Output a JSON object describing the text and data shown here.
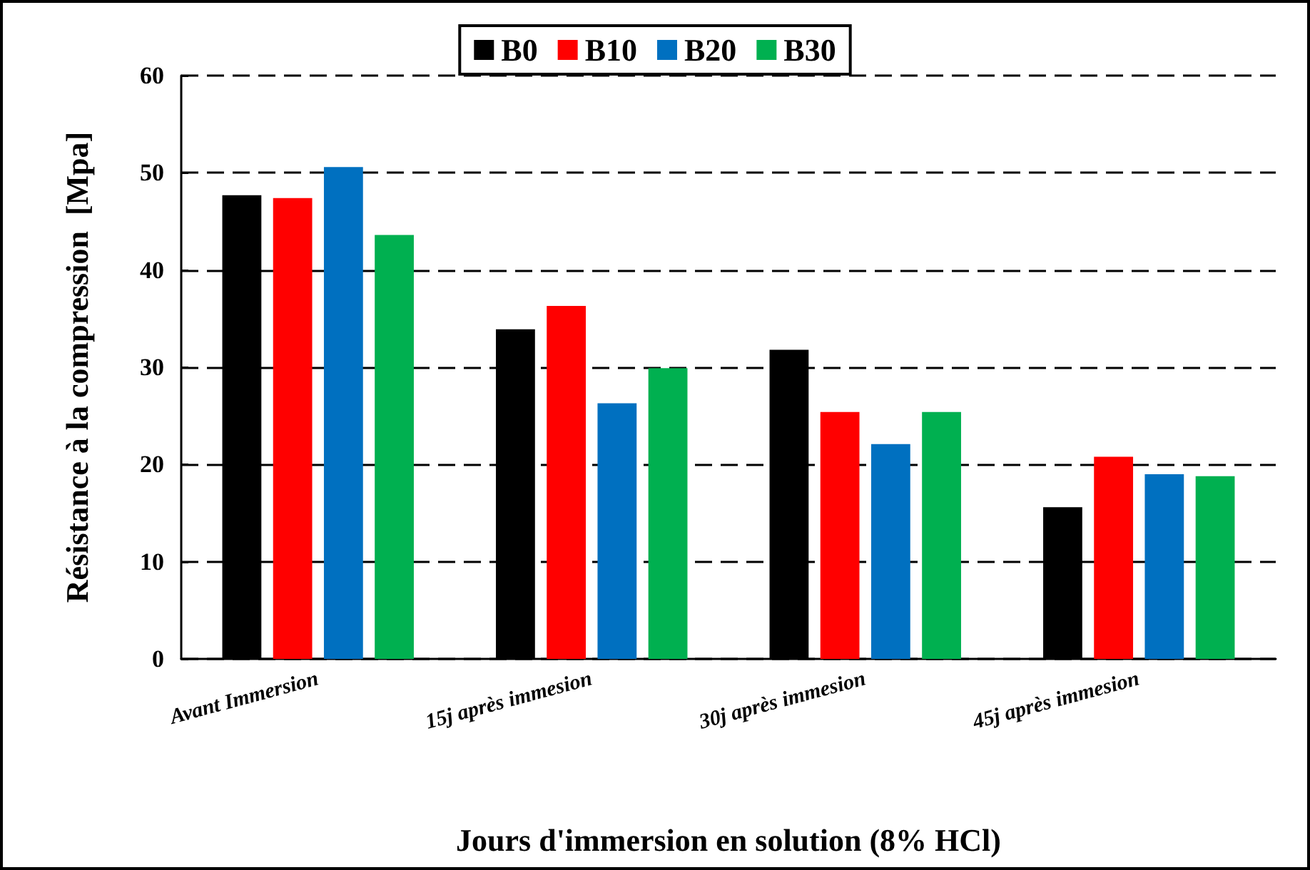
{
  "chart_data": {
    "type": "bar",
    "xlabel": "Jours d'immersion en solution (8% HCl)",
    "ylabel": "Résistance à la compression  [Mpa]",
    "categories": [
      "Avant Immersion",
      "15j après immesion",
      "30j après immesion",
      "45j après immesion"
    ],
    "series": [
      {
        "name": "B0",
        "color": "#000000",
        "values": [
          47.7,
          33.9,
          31.8,
          15.6
        ]
      },
      {
        "name": "B10",
        "color": "#ff0000",
        "values": [
          47.4,
          36.3,
          25.4,
          20.8
        ]
      },
      {
        "name": "B20",
        "color": "#0070c0",
        "values": [
          50.6,
          26.3,
          22.1,
          19.0
        ]
      },
      {
        "name": "B30",
        "color": "#00b050",
        "values": [
          43.6,
          29.9,
          25.4,
          18.8
        ]
      }
    ],
    "ylim": [
      0,
      60
    ],
    "yticks": [
      0,
      10,
      20,
      30,
      40,
      50,
      60
    ],
    "grid": "y",
    "legend": "top"
  }
}
